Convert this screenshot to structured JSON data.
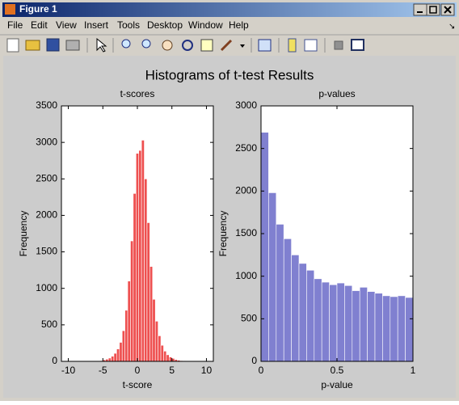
{
  "window": {
    "title": "Figure 1",
    "menu": [
      "File",
      "Edit",
      "View",
      "Insert",
      "Tools",
      "Desktop",
      "Window",
      "Help"
    ]
  },
  "suptitle": "Histograms of t-test Results",
  "chart_data": [
    {
      "type": "histogram",
      "title": "t-scores",
      "xlabel": "t-score",
      "ylabel": "Frequency",
      "color": "#ee5050",
      "bins": [
        -9.8,
        -9.4,
        -9,
        -8.6,
        -8.2,
        -7.8,
        -7.4,
        -7,
        -6.6,
        -6.2,
        -5.8,
        -5.4,
        -5,
        -4.6,
        -4.2,
        -3.8,
        -3.4,
        -3,
        -2.6,
        -2.2,
        -1.8,
        -1.4,
        -1,
        -0.6,
        -0.2,
        0.2,
        0.6,
        1,
        1.4,
        1.8,
        2.2,
        2.6,
        3,
        3.4,
        3.8,
        4.2,
        4.6,
        5,
        5.4,
        5.8,
        6.2,
        6.6,
        7,
        7.4,
        7.8,
        8.2,
        8.6,
        9,
        9.4,
        9.8,
        10.2
      ],
      "values": [
        0,
        0,
        0,
        0,
        0,
        0,
        0,
        0,
        0,
        0,
        5,
        10,
        20,
        30,
        45,
        70,
        110,
        170,
        260,
        420,
        700,
        1100,
        1650,
        2300,
        2850,
        2890,
        3030,
        2500,
        1900,
        1300,
        850,
        550,
        350,
        220,
        140,
        90,
        60,
        40,
        25,
        15,
        10,
        6,
        4,
        3,
        2,
        1,
        1,
        0,
        0,
        1
      ],
      "xlim": [
        -11,
        11
      ],
      "xticks": [
        -10,
        -5,
        0,
        5,
        10
      ],
      "ylim": [
        0,
        3500
      ],
      "yticks": [
        0,
        500,
        1000,
        1500,
        2000,
        2500,
        3000,
        3500
      ]
    },
    {
      "type": "histogram",
      "title": "p-values",
      "xlabel": "p-value",
      "ylabel": "Frequency",
      "color": "#8080d0",
      "bins": [
        0,
        0.05,
        0.1,
        0.15,
        0.2,
        0.25,
        0.3,
        0.35,
        0.4,
        0.45,
        0.5,
        0.55,
        0.6,
        0.65,
        0.7,
        0.75,
        0.8,
        0.85,
        0.9,
        0.95,
        1
      ],
      "values": [
        2690,
        1980,
        1610,
        1440,
        1250,
        1150,
        1070,
        970,
        930,
        900,
        920,
        890,
        830,
        870,
        820,
        800,
        770,
        760,
        770,
        750
      ],
      "xlim": [
        0,
        1
      ],
      "xticks": [
        0,
        0.5,
        1
      ],
      "ylim": [
        0,
        3000
      ],
      "yticks": [
        0,
        500,
        1000,
        1500,
        2000,
        2500,
        3000
      ]
    }
  ]
}
